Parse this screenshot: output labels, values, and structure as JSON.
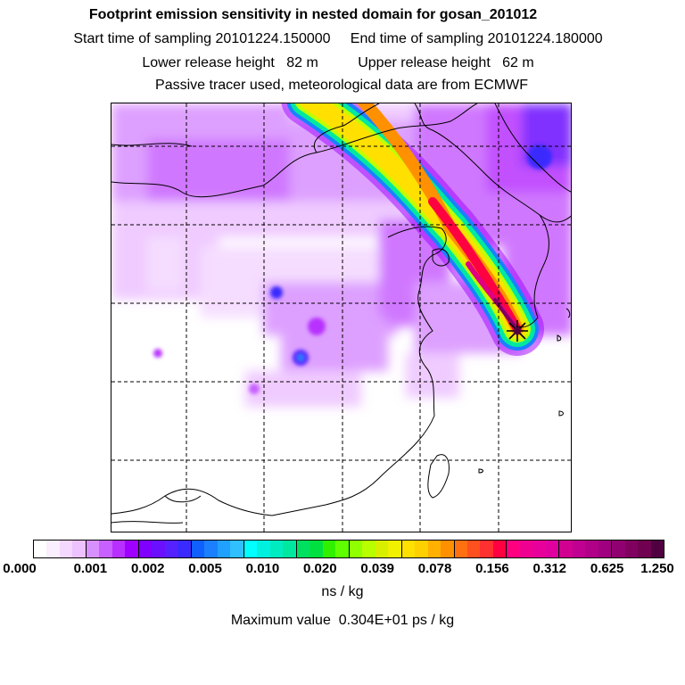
{
  "header": {
    "title": "Footprint emission sensitivity in nested domain for gosan_201012",
    "line2": "Start time of sampling 20101224.150000     End time of sampling 20101224.180000",
    "line3": "Lower release height   82 m          Upper release height   62 m",
    "line4": "Passive tracer used, meteorological data are from ECMWF"
  },
  "map": {
    "release_marker": "star-icon",
    "plume_colors": [
      "#a000ff",
      "#3030ff",
      "#00e0ff",
      "#00e060",
      "#c0ff00",
      "#ffe000",
      "#ff8000",
      "#ff0020",
      "#e00080",
      "#800060"
    ]
  },
  "colorbar": {
    "swatches": [
      "#ffffff",
      "#fbeeff",
      "#f4d8ff",
      "#edc2ff",
      "#d890ff",
      "#c860ff",
      "#b830ff",
      "#a000ff",
      "#8000ff",
      "#6a10ff",
      "#5522ff",
      "#3a2aff",
      "#1060ff",
      "#1a80ff",
      "#20a0ff",
      "#30c0ff",
      "#00ffff",
      "#00f0e0",
      "#00ecc0",
      "#00e8a0",
      "#00e060",
      "#00e040",
      "#30f000",
      "#60ff00",
      "#90ff00",
      "#b8ff00",
      "#d8f000",
      "#f0f000",
      "#ffe000",
      "#ffd000",
      "#ffb000",
      "#ff9000",
      "#ff7010",
      "#ff5020",
      "#ff3030",
      "#ff0040",
      "#ff0080",
      "#f00090",
      "#e8009a",
      "#e000a0",
      "#d00090",
      "#c00090",
      "#b00088",
      "#a00080",
      "#900070",
      "#800060",
      "#700050",
      "#500040"
    ],
    "tick_labels": [
      "0.000",
      "0.001",
      "0.002",
      "0.005",
      "0.010",
      "0.020",
      "0.039",
      "0.078",
      "0.156",
      "0.312",
      "0.625",
      "1.250"
    ],
    "units": "ns / kg",
    "max_value": "Maximum value  0.304E+01 ps / kg"
  }
}
